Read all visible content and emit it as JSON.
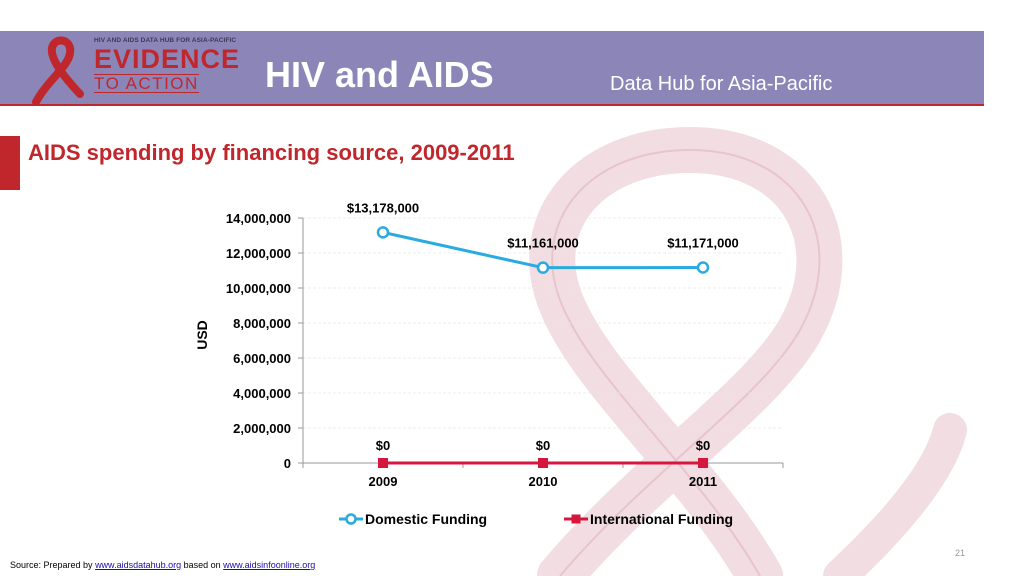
{
  "header": {
    "logo_small_text": "HIV AND AIDS DATA HUB FOR ASIA-PACIFIC",
    "logo_line1": "EVIDENCE",
    "logo_line2": "TO ACTION",
    "title": "HIV and AIDS",
    "subtitle": "Data Hub for Asia-Pacific"
  },
  "slide_title": "AIDS spending by financing source, 2009-2011",
  "colors": {
    "header_band": "#8c86b8",
    "accent_red": "#c0272d",
    "domestic": "#29abe2",
    "international": "#d6163c"
  },
  "chart_data": {
    "type": "line",
    "title": "AIDS spending by financing source, 2009-2011",
    "xlabel": "",
    "ylabel": "USD",
    "categories": [
      "2009",
      "2010",
      "2011"
    ],
    "ylim": [
      0,
      14000000
    ],
    "y_ticks": [
      0,
      2000000,
      4000000,
      6000000,
      8000000,
      10000000,
      12000000,
      14000000
    ],
    "y_tick_labels": [
      "0",
      "2,000,000",
      "4,000,000",
      "6,000,000",
      "8,000,000",
      "10,000,000",
      "12,000,000",
      "14,000,000"
    ],
    "series": [
      {
        "name": "Domestic Funding",
        "values": [
          13178000,
          11161000,
          11171000
        ],
        "labels": [
          "$13,178,000",
          "$11,161,000",
          "$11,171,000"
        ],
        "color": "#29abe2",
        "marker": "circle"
      },
      {
        "name": "International Funding",
        "values": [
          0,
          0,
          0
        ],
        "labels": [
          "$0",
          "$0",
          "$0"
        ],
        "color": "#d6163c",
        "marker": "square"
      }
    ],
    "legend_position": "bottom"
  },
  "footer": {
    "source_prefix": "Source: Prepared by ",
    "source_link1": "www.aidsdatahub.org",
    "source_middle": " based on ",
    "source_link2": "www.aidsinfoonline.org",
    "page_number": "21"
  }
}
